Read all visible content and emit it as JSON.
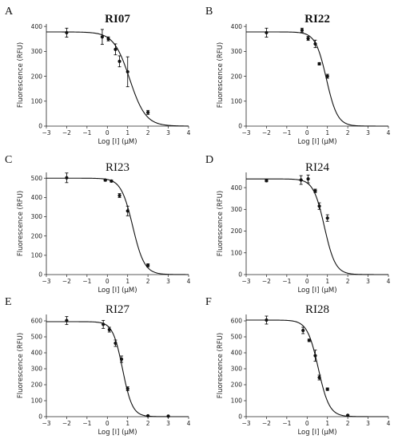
{
  "figure": {
    "x_tick_labels": [
      "−3",
      "−2",
      "−1",
      "0",
      "1",
      "2",
      "3",
      "4"
    ]
  },
  "chart_data": [
    {
      "panel": "A",
      "title": "RI07",
      "title_bold": true,
      "type": "line",
      "xlabel": "Log [I] (μM)",
      "ylabel": "Fluorescence (RFU)",
      "xlim": [
        -3,
        4
      ],
      "ylim": [
        0,
        410
      ],
      "yticks": [
        0,
        100,
        200,
        300,
        400
      ],
      "fit": {
        "top": 378,
        "bottom": 0,
        "logIC50": 1.1,
        "hill": 1.1
      },
      "points": [
        {
          "x": -2.0,
          "y": 375,
          "err": 18
        },
        {
          "x": -0.25,
          "y": 358,
          "err": 30
        },
        {
          "x": 0.05,
          "y": 350,
          "err": 8
        },
        {
          "x": 0.4,
          "y": 308,
          "err": 22
        },
        {
          "x": 0.6,
          "y": 260,
          "err": 22
        },
        {
          "x": 1.0,
          "y": 218,
          "err": 60
        },
        {
          "x": 2.0,
          "y": 55,
          "err": 8
        }
      ]
    },
    {
      "panel": "B",
      "title": "RI22",
      "title_bold": true,
      "type": "line",
      "xlabel": "Log [I] (μM)",
      "ylabel": "Fluorescence (RFU)",
      "xlim": [
        -3,
        4
      ],
      "ylim": [
        0,
        410
      ],
      "yticks": [
        0,
        100,
        200,
        300,
        400
      ],
      "fit": {
        "top": 378,
        "bottom": 0,
        "logIC50": 0.95,
        "hill": 1.6
      },
      "points": [
        {
          "x": -2.0,
          "y": 375,
          "err": 18
        },
        {
          "x": -0.25,
          "y": 385,
          "err": 8
        },
        {
          "x": 0.05,
          "y": 352,
          "err": 8
        },
        {
          "x": 0.4,
          "y": 330,
          "err": 15
        },
        {
          "x": 0.6,
          "y": 250,
          "err": 5
        },
        {
          "x": 1.0,
          "y": 200,
          "err": 8
        }
      ]
    },
    {
      "panel": "C",
      "title": "RI23",
      "title_bold": false,
      "type": "line",
      "xlabel": "Log [I] (μM)",
      "ylabel": "Fluorescence (RFU)",
      "xlim": [
        -3,
        4
      ],
      "ylim": [
        0,
        530
      ],
      "yticks": [
        0,
        100,
        200,
        300,
        400,
        500
      ],
      "fit": {
        "top": 500,
        "bottom": 0,
        "logIC50": 1.25,
        "hill": 1.5
      },
      "points": [
        {
          "x": -2.0,
          "y": 502,
          "err": 25
        },
        {
          "x": -0.1,
          "y": 490,
          "err": 5
        },
        {
          "x": 0.2,
          "y": 485,
          "err": 5
        },
        {
          "x": 0.6,
          "y": 410,
          "err": 10
        },
        {
          "x": 1.0,
          "y": 330,
          "err": 25
        },
        {
          "x": 2.0,
          "y": 48,
          "err": 8
        }
      ]
    },
    {
      "panel": "D",
      "title": "RI24",
      "title_bold": false,
      "type": "line",
      "xlabel": "Log [I] (μM)",
      "ylabel": "Fluorescence (RFU)",
      "xlim": [
        -3,
        4
      ],
      "ylim": [
        0,
        470
      ],
      "yticks": [
        0,
        100,
        200,
        300,
        400
      ],
      "fit": {
        "top": 440,
        "bottom": 0,
        "logIC50": 0.85,
        "hill": 1.6
      },
      "points": [
        {
          "x": -2.0,
          "y": 432,
          "err": 5
        },
        {
          "x": -0.3,
          "y": 435,
          "err": 20
        },
        {
          "x": 0.05,
          "y": 440,
          "err": 18
        },
        {
          "x": 0.4,
          "y": 385,
          "err": 8
        },
        {
          "x": 0.6,
          "y": 315,
          "err": 15
        },
        {
          "x": 1.0,
          "y": 260,
          "err": 15
        }
      ]
    },
    {
      "panel": "E",
      "title": "RI27",
      "title_bold": false,
      "type": "line",
      "xlabel": "Log [I] (μM)",
      "ylabel": "Fluorescence (RFU)",
      "xlim": [
        -3,
        4
      ],
      "ylim": [
        0,
        640
      ],
      "yticks": [
        0,
        100,
        200,
        300,
        400,
        500,
        600
      ],
      "fit": {
        "top": 595,
        "bottom": 0,
        "logIC50": 0.75,
        "hill": 1.8
      },
      "points": [
        {
          "x": -2.0,
          "y": 602,
          "err": 25
        },
        {
          "x": -0.2,
          "y": 578,
          "err": 25
        },
        {
          "x": 0.1,
          "y": 545,
          "err": 15
        },
        {
          "x": 0.4,
          "y": 460,
          "err": 20
        },
        {
          "x": 0.7,
          "y": 360,
          "err": 20
        },
        {
          "x": 1.0,
          "y": 175,
          "err": 12
        },
        {
          "x": 2.0,
          "y": 5,
          "err": 3
        },
        {
          "x": 3.0,
          "y": 3,
          "err": 2
        }
      ]
    },
    {
      "panel": "F",
      "title": "RI28",
      "title_bold": false,
      "type": "line",
      "xlabel": "Log [I] (μM)",
      "ylabel": "Fluorescence (RFU)",
      "xlim": [
        -3,
        4
      ],
      "ylim": [
        0,
        640
      ],
      "yticks": [
        0,
        100,
        200,
        300,
        400,
        500,
        600
      ],
      "fit": {
        "top": 605,
        "bottom": 0,
        "logIC50": 0.55,
        "hill": 1.6
      },
      "points": [
        {
          "x": -2.0,
          "y": 605,
          "err": 25
        },
        {
          "x": -0.2,
          "y": 540,
          "err": 20
        },
        {
          "x": 0.1,
          "y": 478,
          "err": 8
        },
        {
          "x": 0.4,
          "y": 382,
          "err": 35
        },
        {
          "x": 0.6,
          "y": 245,
          "err": 15
        },
        {
          "x": 1.0,
          "y": 172,
          "err": 8
        },
        {
          "x": 2.0,
          "y": 8,
          "err": 3
        }
      ]
    }
  ]
}
